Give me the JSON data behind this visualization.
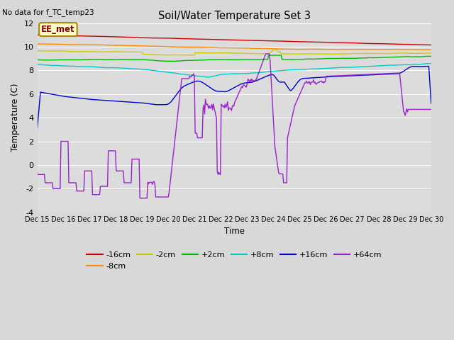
{
  "title": "Soil/Water Temperature Set 3",
  "no_data_text": "No data for f_TC_temp23",
  "xlabel": "Time",
  "ylabel": "Temperature (C)",
  "ylim": [
    -4,
    12
  ],
  "yticks": [
    -4,
    -2,
    0,
    2,
    4,
    6,
    8,
    10,
    12
  ],
  "xlim": [
    0,
    15
  ],
  "xtick_labels": [
    "Dec 15",
    "Dec 16",
    "Dec 17",
    "Dec 18",
    "Dec 19",
    "Dec 20",
    "Dec 21",
    "Dec 22",
    "Dec 23",
    "Dec 24",
    "Dec 25",
    "Dec 26",
    "Dec 27",
    "Dec 28",
    "Dec 29",
    "Dec 30"
  ],
  "fig_bg": "#d8d8d8",
  "plot_bg": "#dcdcdc",
  "grid_color": "#ffffff",
  "colors": {
    "-16cm": "#cc0000",
    "-8cm": "#ff8800",
    "-2cm": "#cccc00",
    "+2cm": "#00bb00",
    "+8cm": "#00cccc",
    "+16cm": "#0000cc",
    "+64cm": "#9922cc"
  },
  "legend_items": [
    "-16cm",
    "-8cm",
    "-2cm",
    "+2cm",
    "+8cm",
    "+16cm",
    "+64cm"
  ]
}
